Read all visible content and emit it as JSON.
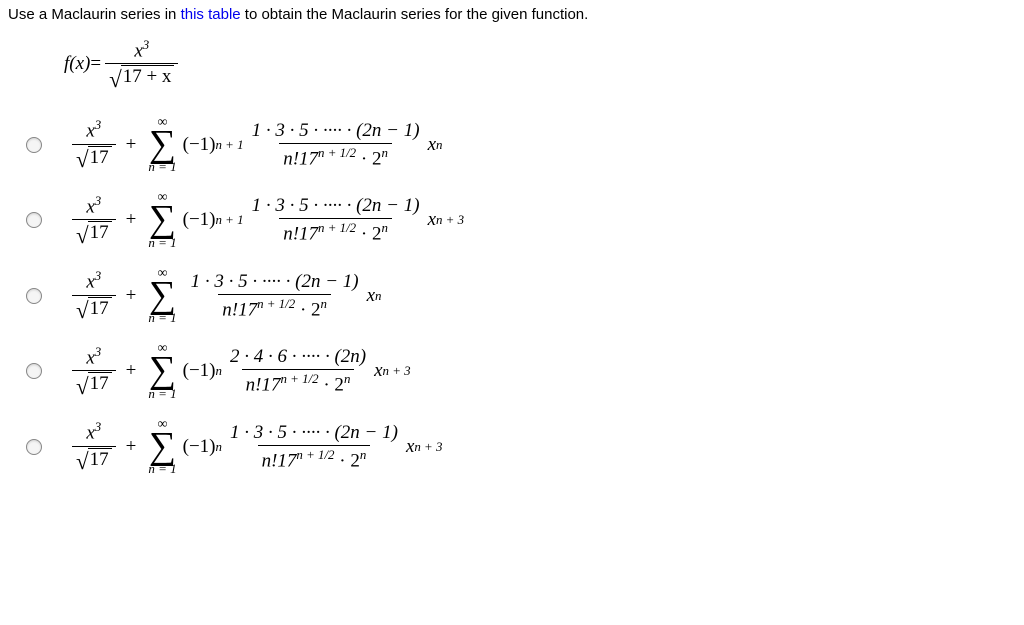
{
  "prompt": {
    "before_link": "Use a Maclaurin series in ",
    "link_text": "this table",
    "after_link": " to obtain the Maclaurin series for the given function."
  },
  "function": {
    "lhs": "f(x)",
    "eq": " = ",
    "num_var": "x",
    "num_exp": "3",
    "rad_const": "17",
    "rad_plus_var": " + x"
  },
  "common": {
    "lead_num_var": "x",
    "lead_num_exp": "3",
    "lead_den_const": "17",
    "plus": "+",
    "sigma_top": "∞",
    "sigma_sym": "∑",
    "sigma_bot": "n = 1",
    "oddprod": "1 · 3 · 5 · ···· · (2n − 1)",
    "evenprod": "2 · 4 · 6 · ···· · (2n)",
    "frac_den_a": "n!17",
    "frac_den_exp1": "n + 1/2",
    "frac_den_mid": " · 2",
    "frac_den_exp2": "n",
    "tail_x": "x",
    "tail_exp_n": "n",
    "tail_exp_n3": "n + 3",
    "neg1_n1_a": "(−1)",
    "neg1_n1_exp": "n + 1",
    "neg1_n_a": "(−1)",
    "neg1_n_exp": "n"
  }
}
